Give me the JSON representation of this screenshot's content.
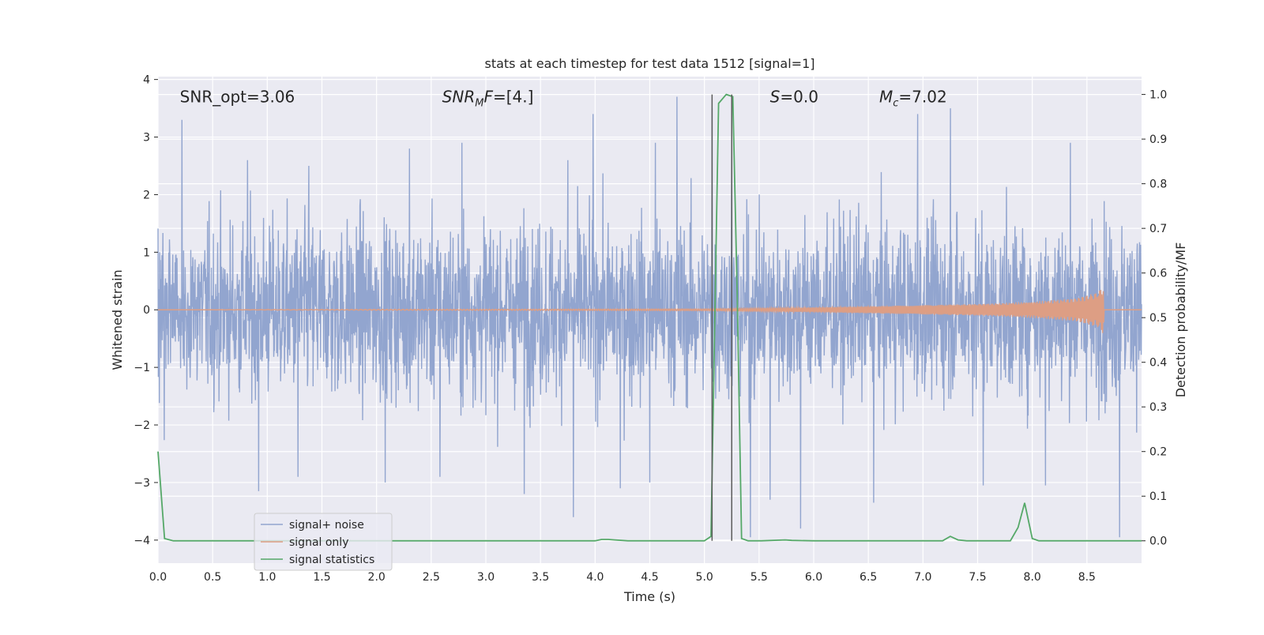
{
  "chart_data": {
    "type": "line",
    "title": "stats at each timestep for test data 1512 [signal=1]",
    "xlabel": "Time (s)",
    "ylabel": "Whitened strain",
    "y2label": "Detection probability/MF",
    "xlim": [
      0,
      9.0
    ],
    "ylim": [
      -4.4,
      4.05
    ],
    "y2lim": [
      -0.05,
      1.04
    ],
    "xticks": [
      0.0,
      0.5,
      1.0,
      1.5,
      2.0,
      2.5,
      3.0,
      3.5,
      4.0,
      4.5,
      5.0,
      5.5,
      6.0,
      6.5,
      7.0,
      7.5,
      8.0,
      8.5
    ],
    "xtick_labels": [
      "0.0",
      "0.5",
      "1.0",
      "1.5",
      "2.0",
      "2.5",
      "3.0",
      "3.5",
      "4.0",
      "4.5",
      "5.0",
      "5.5",
      "6.0",
      "6.5",
      "7.0",
      "7.5",
      "8.0",
      "8.5"
    ],
    "yticks": [
      -4,
      -3,
      -2,
      -1,
      0,
      1,
      2,
      3,
      4
    ],
    "ytick_labels": [
      "−4",
      "−3",
      "−2",
      "−1",
      "0",
      "1",
      "2",
      "3",
      "4"
    ],
    "y2ticks": [
      0.0,
      0.1,
      0.2,
      0.3,
      0.4,
      0.5,
      0.6,
      0.7,
      0.8,
      0.9,
      1.0
    ],
    "y2tick_labels": [
      "0.0",
      "0.1",
      "0.2",
      "0.3",
      "0.4",
      "0.5",
      "0.6",
      "0.7",
      "0.8",
      "0.9",
      "1.0"
    ],
    "grid": true,
    "legend_position": "lower-left",
    "annotations": [
      {
        "text": "SNR_opt=3.06",
        "x": 0.2,
        "y": 3.7
      },
      {
        "text": "SNR_MF=[4.]",
        "x": 2.6,
        "y": 3.7
      },
      {
        "text": "S=0.0",
        "x": 5.6,
        "y": 3.7
      },
      {
        "text": "M_c=7.02",
        "x": 6.6,
        "y": 3.7
      }
    ],
    "series": [
      {
        "name": "signal+ noise",
        "axis": "left",
        "color": "#92a5cf",
        "description_values": {
          "band_low": -1.9,
          "band_high": 1.9,
          "max": 3.7,
          "min": -3.95
        },
        "peaks": [
          [
            0.22,
            3.3
          ],
          [
            0.82,
            2.6
          ],
          [
            1.38,
            2.5
          ],
          [
            2.3,
            2.8
          ],
          [
            2.78,
            2.9
          ],
          [
            3.75,
            2.6
          ],
          [
            3.98,
            3.4
          ],
          [
            4.55,
            2.9
          ],
          [
            4.75,
            3.7
          ],
          [
            5.07,
            3.5
          ],
          [
            5.25,
            3.15
          ],
          [
            6.55,
            2.95
          ],
          [
            6.95,
            3.4
          ],
          [
            7.25,
            3.5
          ],
          [
            8.35,
            2.9
          ],
          [
            8.8,
            2.5
          ]
        ],
        "troughs": [
          [
            0.92,
            -3.15
          ],
          [
            1.28,
            -2.9
          ],
          [
            2.08,
            -3.0
          ],
          [
            2.58,
            -2.9
          ],
          [
            3.35,
            -3.2
          ],
          [
            3.8,
            -3.6
          ],
          [
            4.23,
            -3.1
          ],
          [
            4.5,
            -3.0
          ],
          [
            5.42,
            -3.95
          ],
          [
            5.6,
            -3.3
          ],
          [
            5.88,
            -3.8
          ],
          [
            6.55,
            -3.35
          ],
          [
            7.55,
            -3.05
          ],
          [
            8.12,
            -3.05
          ],
          [
            8.8,
            -3.95
          ]
        ]
      },
      {
        "name": "signal only",
        "axis": "left",
        "color": "#dd9e84",
        "envelope": [
          [
            0.0,
            0.0
          ],
          [
            5.0,
            0.015
          ],
          [
            6.0,
            0.04
          ],
          [
            7.0,
            0.08
          ],
          [
            7.5,
            0.1
          ],
          [
            8.0,
            0.14
          ],
          [
            8.4,
            0.2
          ],
          [
            8.6,
            0.3
          ],
          [
            8.65,
            0.42
          ],
          [
            8.66,
            0.0
          ],
          [
            9.0,
            0.0
          ]
        ]
      },
      {
        "name": "signal statistics",
        "axis": "right",
        "color": "#55a868",
        "x": [
          0.0,
          0.06,
          0.14,
          0.5,
          1.0,
          2.0,
          3.0,
          4.0,
          4.06,
          4.12,
          4.18,
          4.3,
          5.0,
          5.06,
          5.13,
          5.2,
          5.26,
          5.3,
          5.34,
          5.4,
          5.52,
          5.74,
          5.8,
          6.0,
          7.0,
          7.18,
          7.25,
          7.32,
          7.4,
          7.8,
          7.87,
          7.93,
          8.0,
          8.06,
          8.2,
          9.0
        ],
        "values": [
          0.2,
          0.005,
          0.0,
          0.0,
          0.0,
          0.0,
          0.0,
          0.0,
          0.003,
          0.003,
          0.002,
          0.0,
          0.0,
          0.01,
          0.98,
          1.0,
          0.995,
          0.55,
          0.005,
          0.0,
          0.0,
          0.002,
          0.001,
          0.0,
          0.0,
          0.0,
          0.01,
          0.002,
          0.0,
          0.0,
          0.03,
          0.085,
          0.005,
          0.0,
          0.0,
          0.0
        ]
      }
    ],
    "vertical_lines": [
      {
        "x": 5.07,
        "ymin": 0.0,
        "ymax": 1.0,
        "axis": "right",
        "color": "#5c5c5c"
      },
      {
        "x": 5.25,
        "ymin": 0.0,
        "ymax": 1.0,
        "axis": "right",
        "color": "#5c5c5c"
      }
    ]
  }
}
